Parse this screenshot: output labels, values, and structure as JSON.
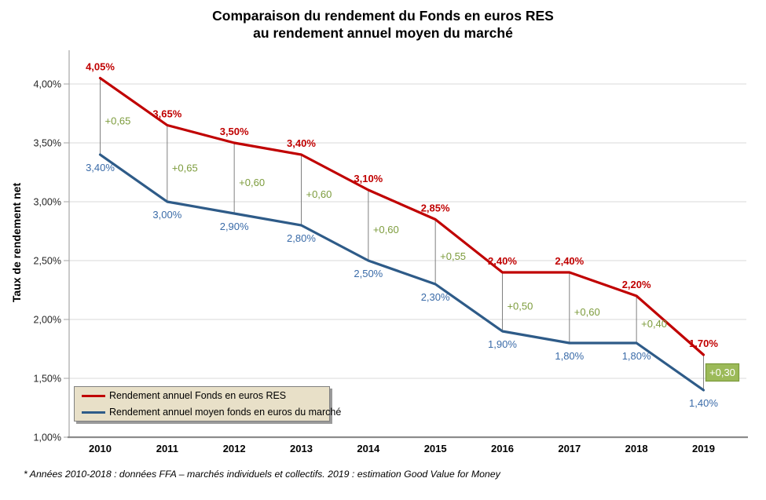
{
  "title": {
    "line1": "Comparaison du rendement du Fonds en euros RES",
    "line2": "au rendement annuel moyen du marché"
  },
  "y_axis": {
    "title": "Taux de rendement net"
  },
  "legend": {
    "items": [
      {
        "label": "Rendement annuel Fonds en euros RES",
        "color": "#C00000"
      },
      {
        "label": "Rendement annuel moyen fonds en euros du marché",
        "color": "#2E5B88"
      }
    ]
  },
  "footnote": "* Années 2010-2018 : données FFA – marchés individuels et collectifs. 2019 : estimation Good Value for Money",
  "chart_data": {
    "type": "line",
    "title": "Comparaison du rendement du Fonds en euros RES au rendement annuel moyen du marché",
    "xlabel": "",
    "ylabel": "Taux de rendement net",
    "categories": [
      "2010",
      "2011",
      "2012",
      "2013",
      "2014",
      "2015",
      "2016",
      "2017",
      "2018",
      "2019"
    ],
    "series": [
      {
        "name": "Rendement annuel Fonds en euros RES",
        "color": "#C00000",
        "label_color": "#C00000",
        "values": [
          4.05,
          3.65,
          3.5,
          3.4,
          3.1,
          2.85,
          2.4,
          2.4,
          2.2,
          1.7
        ],
        "labels": [
          "4,05%",
          "3,65%",
          "3,50%",
          "3,40%",
          "3,10%",
          "2,85%",
          "2,40%",
          "2,40%",
          "2,20%",
          "1,70%"
        ]
      },
      {
        "name": "Rendement annuel moyen fonds en euros du marché",
        "color": "#2E5B88",
        "label_color": "#3A6BA8",
        "values": [
          3.4,
          3.0,
          2.9,
          2.8,
          2.5,
          2.3,
          1.9,
          1.8,
          1.8,
          1.4
        ],
        "labels": [
          "3,40%",
          "3,00%",
          "2,90%",
          "2,80%",
          "2,50%",
          "2,30%",
          "1,90%",
          "1,80%",
          "1,80%",
          "1,40%"
        ]
      }
    ],
    "differences": {
      "labels": [
        "+0,65",
        "+0,65",
        "+0,60",
        "+0,60",
        "+0,60",
        "+0,55",
        "+0,50",
        "+0,60",
        "+0,40",
        "+0,30"
      ],
      "color": "#7D9C3D",
      "last_highlighted": true,
      "highlight_fill": "#9CBA59",
      "highlight_border": "#7D9C3D",
      "highlight_text_color": "#FFFFFF"
    },
    "ylim": [
      1.0,
      4.0
    ],
    "ytick_values": [
      4.0,
      3.5,
      3.0,
      2.5,
      2.0,
      1.5,
      1.0
    ],
    "ytick_labels": [
      "4,00%",
      "3,50%",
      "3,00%",
      "2,50%",
      "2,00%",
      "1,50%",
      "1,00%"
    ],
    "grid": true,
    "legend_position": "bottom-left",
    "gridline_color": "#D9D9D9",
    "axis_color": "#8C8C8C",
    "connector_color": "#808080"
  }
}
